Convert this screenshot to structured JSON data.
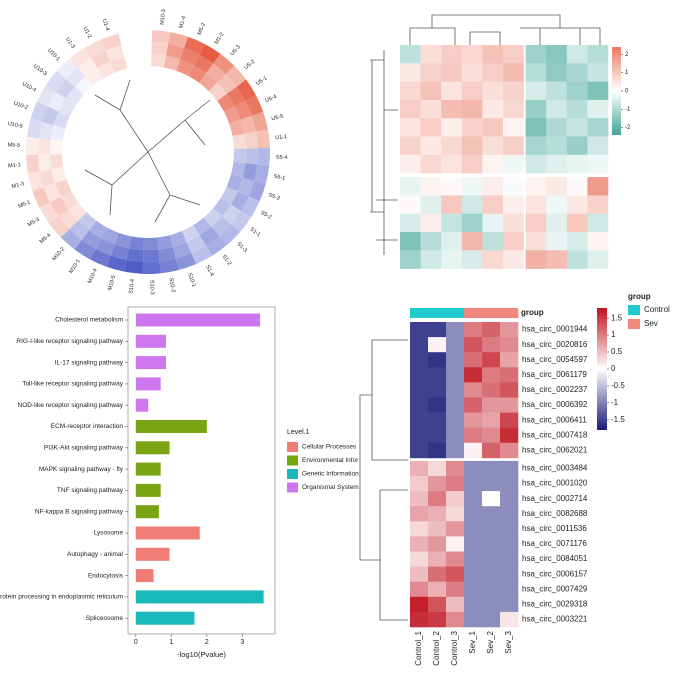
{
  "chart_data": [
    {
      "type": "circular_heatmap",
      "labels": [
        "M10-3",
        "M1-4",
        "M5-2",
        "M1-2",
        "U5-3",
        "U5-2",
        "U5-1",
        "U5-4",
        "U5-5",
        "U1-1",
        "S5-4",
        "S5-1",
        "S5-3",
        "S5-2",
        "S1-1",
        "S1-3",
        "S1-2",
        "S1-4",
        "S10-1",
        "S10-2",
        "S10-3",
        "S10-4",
        "M10-5",
        "M10-4",
        "M10-1",
        "M10-2",
        "M5-4",
        "M5-3",
        "M5-1",
        "M1-3",
        "M1-1",
        "M5-5",
        "U10-5",
        "U10-2",
        "U10-4",
        "U10-3",
        "U10-1",
        "U1-3",
        "U1-2",
        "U1-4"
      ],
      "rings": [
        [
          0.6,
          0.9,
          1.6,
          1.8,
          1.2,
          0.8,
          1.7,
          1.5,
          1.0,
          0.7,
          -0.8,
          -0.9,
          -1.0,
          -0.7,
          -0.6,
          -0.8,
          -0.9,
          -0.7,
          -1.2,
          -1.4,
          -1.6,
          -1.8,
          -1.7,
          -1.5,
          -1.3,
          -0.9,
          0.5,
          0.4,
          0.6,
          0.3,
          0.5,
          0.2,
          -0.4,
          -0.5,
          -0.3,
          -0.4,
          -0.2,
          0.3,
          0.4,
          0.5
        ],
        [
          0.5,
          1.1,
          1.4,
          1.5,
          0.9,
          0.7,
          1.5,
          1.3,
          0.8,
          0.5,
          -0.7,
          -1.1,
          -0.8,
          -0.9,
          -0.5,
          -0.7,
          -1.0,
          -0.6,
          -1.0,
          -1.3,
          -1.5,
          -1.6,
          -1.4,
          -1.2,
          -1.1,
          -0.7,
          0.4,
          0.6,
          0.3,
          0.4,
          0.2,
          0.3,
          -0.3,
          -0.6,
          -0.2,
          -0.5,
          -0.3,
          0.2,
          0.5,
          0.3
        ],
        [
          0.4,
          0.8,
          1.2,
          1.3,
          1.0,
          0.5,
          1.3,
          1.1,
          0.9,
          0.4,
          -0.6,
          -0.8,
          -0.9,
          -0.6,
          -0.7,
          -0.5,
          -0.8,
          -0.5,
          -0.9,
          -1.1,
          -1.3,
          -1.4,
          -1.2,
          -1.0,
          -0.9,
          -0.6,
          0.3,
          0.4,
          0.5,
          0.2,
          0.4,
          0.1,
          -0.2,
          -0.4,
          -0.3,
          -0.3,
          -0.1,
          0.2,
          0.3,
          0.4
        ]
      ],
      "clim": [
        -2,
        2
      ],
      "colormap": [
        "#3b4cc0",
        "#ffffff",
        "#e34a2c"
      ]
    },
    {
      "type": "heatmap",
      "values": [
        [
          -0.8,
          0.6,
          0.9,
          0.7,
          1.1,
          0.9,
          -1.2,
          -1.5,
          -0.6,
          -0.9
        ],
        [
          0.4,
          0.8,
          1.0,
          0.6,
          0.9,
          1.2,
          -0.9,
          -1.4,
          -1.1,
          -0.7
        ],
        [
          0.7,
          1.1,
          0.5,
          0.9,
          0.6,
          0.8,
          -0.5,
          -0.8,
          -1.2,
          -1.6
        ],
        [
          0.9,
          0.6,
          1.2,
          1.3,
          0.4,
          0.7,
          -1.3,
          -0.6,
          -0.9,
          -0.4
        ],
        [
          0.5,
          0.9,
          0.3,
          0.8,
          1.0,
          0.2,
          -1.6,
          -1.0,
          -0.7,
          -1.1
        ],
        [
          0.8,
          0.4,
          0.7,
          1.1,
          0.6,
          0.9,
          -1.1,
          -0.9,
          -1.3,
          -0.6
        ],
        [
          0.3,
          0.7,
          0.5,
          0.9,
          0.2,
          -0.2,
          -0.6,
          -0.4,
          -0.3,
          -0.2
        ],
        [
          -0.3,
          0.2,
          0.1,
          -0.2,
          0.3,
          -0.1,
          0.2,
          0.4,
          0.1,
          1.8
        ],
        [
          0.1,
          -0.4,
          1.0,
          -0.6,
          0.9,
          0.3,
          0.5,
          -0.2,
          0.4,
          0.8
        ],
        [
          -0.5,
          0.3,
          -0.7,
          -1.2,
          -0.3,
          0.6,
          0.9,
          -0.4,
          1.0,
          -0.6
        ],
        [
          -1.6,
          -0.9,
          -0.4,
          1.3,
          -0.8,
          0.9,
          0.6,
          -0.3,
          -0.5,
          0.2
        ],
        [
          -1.2,
          -0.6,
          -0.3,
          -0.5,
          0.7,
          0.4,
          1.4,
          1.2,
          -0.8,
          -0.4
        ]
      ],
      "clim": [
        -2.4,
        2.4
      ],
      "colormap": [
        "#3fa595",
        "#ffffff",
        "#ea7a63"
      ],
      "colorbar_ticks": [
        2,
        1,
        0,
        -1,
        -2
      ]
    },
    {
      "type": "bar",
      "categories": [
        "Cholesterol metabolism",
        "RIG-I-like receptor signaling pathway",
        "IL-17 signaling pathway",
        "Toll-like receptor signaling pathway",
        "NOD-like receptor signaling pathway",
        "ECM-receptor interaction",
        "PI3K-Akt signaling pathway",
        "MAPK signaling pathway - fly",
        "TNF signaling pathway",
        "NF-kappa B signaling pathway",
        "Lysosome",
        "Autophagy - animal",
        "Endocytosis",
        "Protein processing in endoplasmic reticulum",
        "Spliceosome"
      ],
      "values": [
        3.5,
        0.85,
        0.85,
        0.7,
        0.35,
        2.0,
        0.95,
        0.7,
        0.7,
        0.65,
        1.8,
        0.95,
        0.5,
        3.6,
        1.65
      ],
      "levels": [
        "Organismal System",
        "Organismal System",
        "Organismal System",
        "Organismal System",
        "Organismal System",
        "Environmental Infor",
        "Environmental Infor",
        "Environmental Infor",
        "Environmental Infor",
        "Environmental Infor",
        "Cellular Processes",
        "Cellular Processes",
        "Cellular Processes",
        "Genetic Information",
        "Genetic Information"
      ],
      "legend_title": "Level.1",
      "legend": [
        {
          "name": "Cellular Processes",
          "color": "#f07c76"
        },
        {
          "name": "Environmental Infor",
          "color": "#7aa512"
        },
        {
          "name": "Genetic Information",
          "color": "#1ab8b8"
        },
        {
          "name": "Organismal System",
          "color": "#cc77ee"
        }
      ],
      "xlim": [
        -0.22,
        3.92
      ],
      "xticks": [
        0,
        1,
        2,
        3
      ],
      "xlabel": "-log10(Pvalue)"
    },
    {
      "type": "heatmap",
      "rows": [
        "hsa_circ_0001944",
        "hsa_circ_0020816",
        "hsa_circ_0054597",
        "hsa_circ_0061179",
        "hsa_circ_0002237",
        "hsa_circ_0006392",
        "hsa_circ_0006411",
        "hsa_circ_0007418",
        "hsa_circ_0062021",
        "hsa_circ_0003484",
        "hsa_circ_0001020",
        "hsa_circ_0002714",
        "hsa_circ_0082688",
        "hsa_circ_0011536",
        "hsa_circ_0071176",
        "hsa_circ_0084051",
        "hsa_circ_0006157",
        "hsa_circ_0007429",
        "hsa_circ_0029318",
        "hsa_circ_0003221"
      ],
      "columns": [
        "Control_1",
        "Control_2",
        "Control_3",
        "Sev_1",
        "Sev_2",
        "Sev_3"
      ],
      "values": [
        [
          -1.5,
          -1.5,
          -0.9,
          1.0,
          1.2,
          0.8
        ],
        [
          -1.5,
          0.1,
          -0.9,
          1.3,
          1.0,
          0.9
        ],
        [
          -1.5,
          -1.6,
          -0.9,
          1.1,
          1.4,
          0.7
        ],
        [
          -1.5,
          -1.5,
          -0.9,
          1.6,
          1.0,
          1.1
        ],
        [
          -1.5,
          -1.5,
          -0.9,
          0.9,
          1.1,
          1.3
        ],
        [
          -1.5,
          -1.6,
          -0.9,
          1.2,
          0.8,
          0.8
        ],
        [
          -1.5,
          -1.5,
          -0.9,
          0.8,
          0.7,
          1.4
        ],
        [
          -1.5,
          -1.5,
          -0.9,
          1.0,
          0.9,
          1.6
        ],
        [
          -1.5,
          -1.6,
          -0.9,
          0.1,
          1.2,
          0.9
        ],
        [
          0.6,
          0.3,
          0.9,
          -0.9,
          -0.9,
          -0.9
        ],
        [
          0.4,
          0.8,
          1.0,
          -0.9,
          -0.9,
          -0.9
        ],
        [
          0.5,
          1.0,
          0.4,
          -0.9,
          0.0,
          -0.9
        ],
        [
          0.7,
          0.6,
          0.3,
          -0.9,
          -0.9,
          -0.9
        ],
        [
          0.3,
          0.5,
          0.8,
          -0.9,
          -0.9,
          -0.9
        ],
        [
          0.6,
          0.8,
          0.1,
          -0.9,
          -0.9,
          -0.9
        ],
        [
          0.3,
          0.6,
          0.9,
          -0.9,
          -0.9,
          -0.9
        ],
        [
          0.5,
          1.1,
          1.3,
          -0.9,
          -0.9,
          -0.9
        ],
        [
          0.9,
          0.6,
          1.0,
          -0.9,
          -0.9,
          -0.9
        ],
        [
          1.7,
          1.3,
          0.5,
          -0.9,
          -0.9,
          -0.9
        ],
        [
          1.6,
          1.5,
          0.9,
          -0.9,
          -0.9,
          0.2
        ]
      ],
      "clim": [
        -1.8,
        1.8
      ],
      "colormap": [
        "#1a1a7a",
        "#ffffff",
        "#c0131e"
      ],
      "colorbar_ticks": [
        1.5,
        1,
        0.5,
        0,
        -0.5,
        -1,
        -1.5
      ],
      "group_title": "group",
      "column_groups": [
        "Control",
        "Control",
        "Control",
        "Sev",
        "Sev",
        "Sev"
      ],
      "legend_title": "group",
      "legend": [
        {
          "name": "Control",
          "color": "#22cccc"
        },
        {
          "name": "Sev",
          "color": "#f08880"
        }
      ]
    }
  ]
}
